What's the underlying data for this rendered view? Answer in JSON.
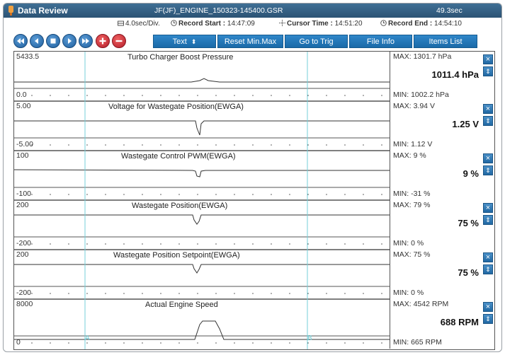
{
  "window": {
    "title": "Data Review",
    "file_name": "JF(JF)_ENGINE_150323-145400.GSR",
    "duration": "49.3sec"
  },
  "info": {
    "time_div": "4.0sec/Div.",
    "record_start_label": "Record Start :",
    "record_start": "14:47:09",
    "cursor_time_label": "Cursor Time :",
    "cursor_time": "14:51:20",
    "record_end_label": "Record End :",
    "record_end": "14:54:10"
  },
  "toolbar": {
    "icons": [
      "rewind-icon",
      "step-back-icon",
      "stop-icon",
      "play-icon",
      "fast-forward-icon",
      "zoom-in-icon",
      "zoom-out-icon"
    ],
    "text_label": "Text",
    "reset_label": "Reset Min.Max",
    "trig_label": "Go to Trig",
    "file_info_label": "File Info",
    "items_list_label": "Items List"
  },
  "cursors": {
    "a_label": "A",
    "b_label": "B",
    "color": "#74cfd8"
  },
  "panels": [
    {
      "title": "Turbo Charger Boost Pressure",
      "scale_max": "5433.5",
      "scale_min": "0.0",
      "max": "MAX: 1301.7 hPa",
      "current": "1011.4 hPa",
      "min": "MIN: 1002.2 hPa"
    },
    {
      "title": "Voltage for Wastegate Position(EWGA)",
      "scale_max": "5.00",
      "scale_min": "-5.00",
      "max": "MAX:  3.94 V",
      "current": "1.25 V",
      "min": "MIN:  1.12 V"
    },
    {
      "title": "Wastegate Control PWM(EWGA)",
      "scale_max": "100",
      "scale_min": "-100",
      "max": "MAX:      9 %",
      "current": "9 %",
      "min": "MIN:   -31 %"
    },
    {
      "title": "Wastegate Position(EWGA)",
      "scale_max": "200",
      "scale_min": "-200",
      "max": "MAX:     79 %",
      "current": "75 %",
      "min": "MIN:      0 %"
    },
    {
      "title": "Wastegate Position Setpoint(EWGA)",
      "scale_max": "200",
      "scale_min": "-200",
      "max": "MAX:     75 %",
      "current": "75 %",
      "min": "MIN:      0 %"
    },
    {
      "title": "Actual Engine Speed",
      "scale_max": "8000",
      "scale_min": "0",
      "max": "MAX:  4542 RPM",
      "current": "688 RPM",
      "min": "MIN:   665 RPM"
    }
  ],
  "panel_buttons": {
    "close": "×",
    "scale": "⇕"
  },
  "colors": {
    "titlebar": "#2c5374",
    "button": "#1a6aa8",
    "cursor": "#74cfd8"
  }
}
